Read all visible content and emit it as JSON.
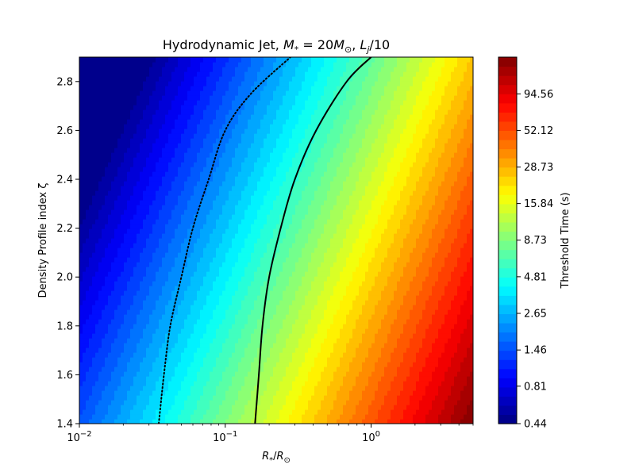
{
  "chart_data": {
    "type": "heatmap",
    "title_parts": [
      "Hydrodynamic Jet, ",
      "M",
      "*",
      " = 20",
      "M",
      "⊙",
      ",  ",
      "L",
      "j",
      "/10"
    ],
    "xlabel_parts": [
      "R",
      "*",
      "/",
      "R",
      "⊙"
    ],
    "ylabel": "Density Profile index ζ",
    "colorbar_label": "Threshold Time (s)",
    "x_scale": "log",
    "xlim": [
      0.01,
      5
    ],
    "ylim": [
      1.4,
      2.9
    ],
    "x_ticks": [
      0.01,
      0.1,
      1
    ],
    "x_tick_labels": [
      {
        "base": "10",
        "exp": "−2"
      },
      {
        "base": "10",
        "exp": "−1"
      },
      {
        "base": "10",
        "exp": "0"
      }
    ],
    "y_ticks": [
      1.4,
      1.6,
      1.8,
      2.0,
      2.2,
      2.4,
      2.6,
      2.8
    ],
    "y_tick_labels": [
      "1.4",
      "1.6",
      "1.8",
      "2.0",
      "2.2",
      "2.4",
      "2.6",
      "2.8"
    ],
    "colorbar_scale": "log",
    "colorbar_range": [
      0.44,
      172
    ],
    "colorbar_ticks": [
      0.44,
      0.81,
      1.46,
      2.65,
      4.81,
      8.73,
      15.84,
      28.73,
      52.12,
      94.56
    ],
    "colorbar_tick_labels": [
      "0.44",
      "0.81",
      "1.46",
      "2.65",
      "4.81",
      "8.73",
      "15.84",
      "28.73",
      "52.12",
      "94.56"
    ],
    "contour_levels": 40,
    "colormap": "jet",
    "field_samples": [
      {
        "x": 0.01,
        "y": 1.4,
        "value": 1.5
      },
      {
        "x": 0.01,
        "y": 2.9,
        "value": 0.44
      },
      {
        "x": 5.0,
        "y": 1.4,
        "value": 172
      },
      {
        "x": 5.0,
        "y": 2.9,
        "value": 56
      },
      {
        "x": 0.16,
        "y": 1.4,
        "value": 15.84
      },
      {
        "x": 0.035,
        "y": 1.4,
        "value": 5.8
      }
    ],
    "curves": [
      {
        "style": "dotted",
        "color": "#000000",
        "points": [
          [
            0.035,
            1.4
          ],
          [
            0.038,
            1.6
          ],
          [
            0.042,
            1.8
          ],
          [
            0.05,
            2.0
          ],
          [
            0.06,
            2.2
          ],
          [
            0.077,
            2.4
          ],
          [
            0.1,
            2.6
          ],
          [
            0.15,
            2.75
          ],
          [
            0.28,
            2.9
          ]
        ]
      },
      {
        "style": "solid",
        "color": "#000000",
        "points": [
          [
            0.16,
            1.4
          ],
          [
            0.17,
            1.6
          ],
          [
            0.18,
            1.8
          ],
          [
            0.2,
            2.0
          ],
          [
            0.24,
            2.2
          ],
          [
            0.3,
            2.4
          ],
          [
            0.42,
            2.6
          ],
          [
            0.68,
            2.8
          ],
          [
            1.0,
            2.9
          ]
        ]
      }
    ]
  }
}
